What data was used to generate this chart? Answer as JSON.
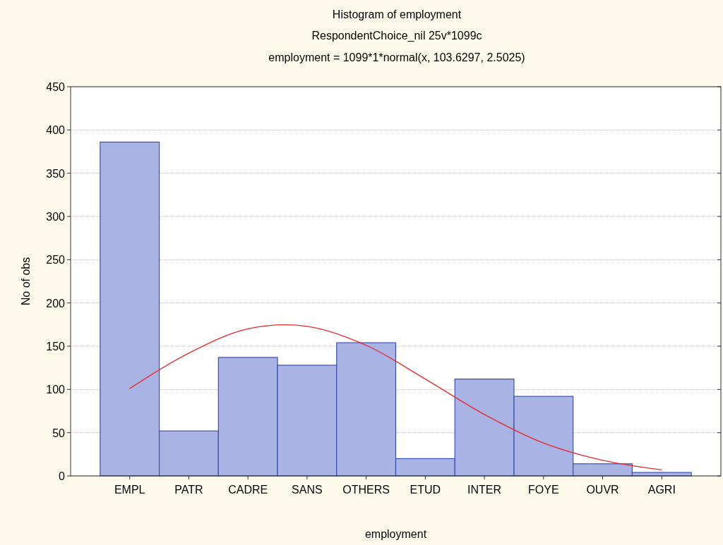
{
  "chart_data": {
    "type": "bar",
    "title": "Histogram of employment",
    "subtitle": "RespondentChoice_nil 25v*1099c",
    "annotations": [
      "employment = 1099*1*normal(x, 103.6297, 2.5025)"
    ],
    "xlabel": "employment",
    "ylabel": "No of obs",
    "categories": [
      "EMPL",
      "PATR",
      "CADRE",
      "SANS",
      "OTHERS",
      "ETUD",
      "INTER",
      "FOYE",
      "OUVR",
      "AGRI"
    ],
    "values": [
      386,
      52,
      137,
      128,
      154,
      20,
      112,
      92,
      14,
      4
    ],
    "color": "#a9b4e4",
    "series": [
      {
        "type": "line",
        "color": "#e8262b",
        "values": [
          101,
          142,
          170,
          173,
          151,
          112,
          71,
          38,
          18,
          7
        ]
      }
    ],
    "ylim": [
      0,
      450
    ],
    "yticks": [
      0,
      50,
      100,
      150,
      200,
      250,
      300,
      350,
      400,
      450
    ],
    "grid": "y",
    "line_style": "solid",
    "marker": "none"
  }
}
